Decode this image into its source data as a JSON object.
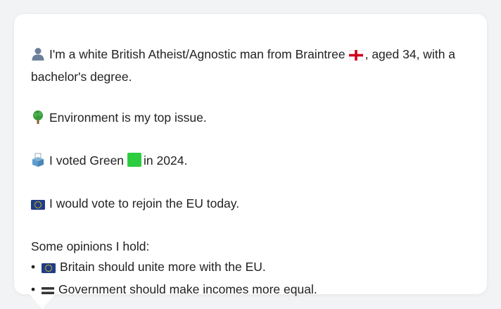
{
  "profile": {
    "intro_text": "I'm a white British Atheist/Agnostic man from Braintree",
    "intro_after_flag": ", aged 34, with a bachelor's degree.",
    "issue_text": "Environment is my top issue.",
    "vote_before": "I voted Green",
    "vote_after": "in 2024.",
    "eu_text": "I would vote to rejoin the EU today."
  },
  "opinions": {
    "heading": "Some opinions I hold:",
    "items": [
      {
        "bullet": "•",
        "icon": "eu-flag-icon",
        "text": "Britain should unite more with the EU."
      },
      {
        "bullet": "•",
        "icon": "equals-icon",
        "text": "Government should make incomes more equal."
      }
    ]
  },
  "colors": {
    "background": "#f2f3f5",
    "card": "#ffffff",
    "text": "#222222",
    "green": "#2ecc40",
    "eu_blue": "#1f3c88",
    "eu_gold": "#f5d000",
    "england_red": "#d0021b"
  },
  "icons": {
    "person": "person-silhouette-icon",
    "tree": "tree-icon",
    "ballot": "ballot-box-icon",
    "green_square": "green-square-icon",
    "eu_flag": "eu-flag-icon",
    "england_flag": "england-flag-icon",
    "equals": "equals-icon"
  }
}
